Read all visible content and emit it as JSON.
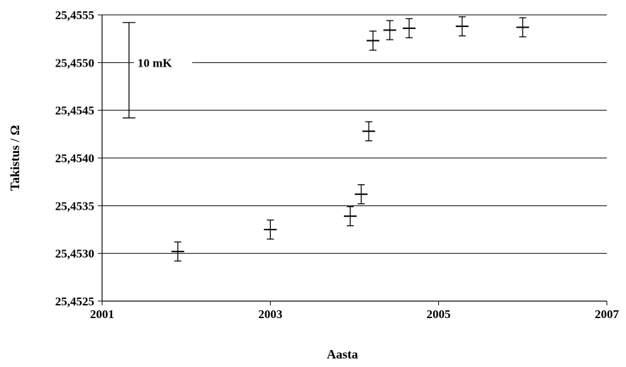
{
  "chart_data": {
    "type": "scatter",
    "xlabel": "Aasta",
    "ylabel": "Takistus / Ω",
    "xlim": [
      2001,
      2007
    ],
    "ylim": [
      25.4525,
      25.4555
    ],
    "x_ticks": [
      2001,
      2003,
      2005,
      2007
    ],
    "x_tick_labels": [
      "2001",
      "2003",
      "2005",
      "2007"
    ],
    "y_ticks": [
      25.4525,
      25.453,
      25.4535,
      25.454,
      25.4545,
      25.455,
      25.4555
    ],
    "y_tick_labels": [
      "25,4525",
      "25,4530",
      "25,4535",
      "25,4540",
      "25,4545",
      "25,4550",
      "25,4555"
    ],
    "grid": "horizontal",
    "series": [
      {
        "points": [
          {
            "x": 2001.9,
            "y": 25.45302,
            "err": 0.0001
          },
          {
            "x": 2003.0,
            "y": 25.45325,
            "err": 0.0001
          },
          {
            "x": 2003.95,
            "y": 25.45339,
            "err": 0.0001
          },
          {
            "x": 2004.08,
            "y": 25.45362,
            "err": 0.0001
          },
          {
            "x": 2004.17,
            "y": 25.45428,
            "err": 0.0001
          },
          {
            "x": 2004.22,
            "y": 25.45523,
            "err": 0.0001
          },
          {
            "x": 2004.42,
            "y": 25.45534,
            "err": 0.0001
          },
          {
            "x": 2004.65,
            "y": 25.45536,
            "err": 0.0001
          },
          {
            "x": 2005.28,
            "y": 25.45538,
            "err": 0.0001
          },
          {
            "x": 2006.0,
            "y": 25.45537,
            "err": 0.0001
          }
        ]
      }
    ],
    "scale_bar": {
      "label": "10 mK",
      "x": 2001.32,
      "y_low": 25.45442,
      "y_high": 25.45542
    }
  }
}
